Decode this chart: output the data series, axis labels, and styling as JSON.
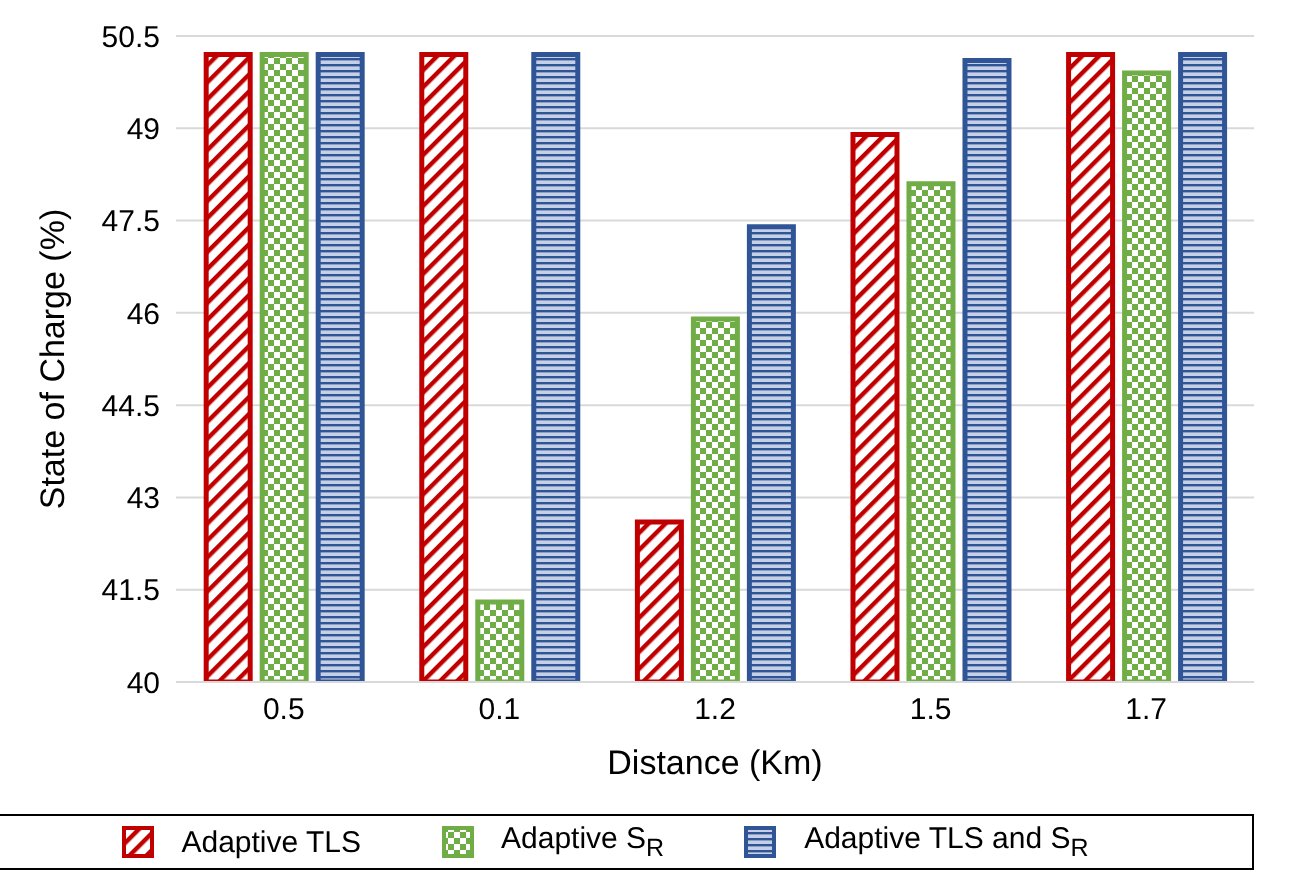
{
  "chart_data": {
    "type": "bar",
    "xlabel": "Distance (Km)",
    "ylabel": "State of Charge (%)",
    "categories": [
      "0.5",
      "0.1",
      "1.2",
      "1.5",
      "1.7"
    ],
    "series": [
      {
        "name": "Adaptive TLS",
        "color": "#c00000",
        "values": [
          50.2,
          50.2,
          42.6,
          48.9,
          50.2
        ]
      },
      {
        "name": "Adaptive S$_{R}$",
        "color": "#70ad47",
        "values": [
          50.2,
          41.3,
          45.9,
          48.1,
          49.9
        ]
      },
      {
        "name": "Adaptive TLS and S$_{R}$",
        "color": "#2f5597",
        "values": [
          50.2,
          50.2,
          47.4,
          50.1,
          50.2
        ]
      }
    ],
    "ylim": [
      40,
      50.5
    ],
    "yticks": [
      40,
      41.5,
      43,
      44.5,
      46,
      47.5,
      49,
      50.5
    ],
    "grid": "y",
    "legend": "bottom"
  }
}
